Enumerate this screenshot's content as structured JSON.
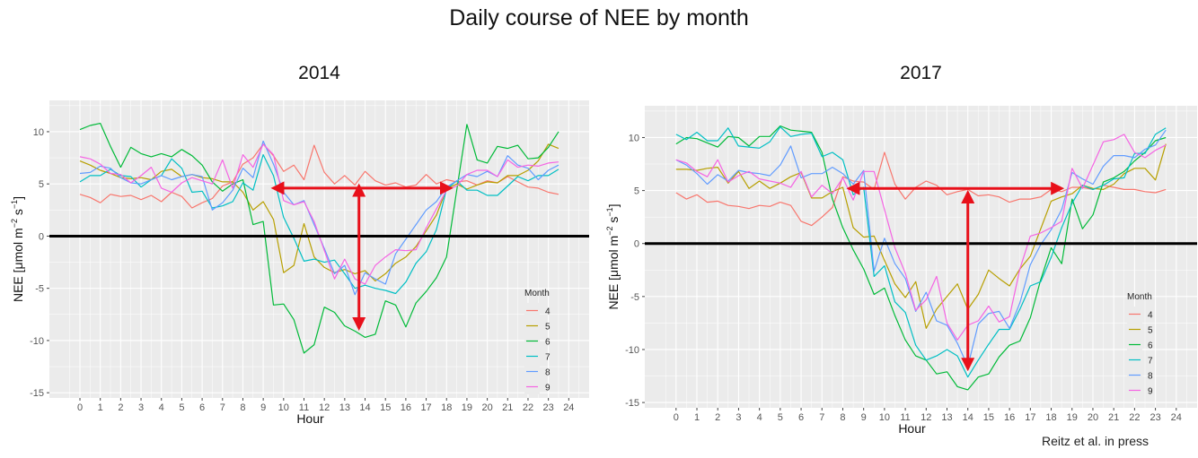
{
  "figure": {
    "title": "Daily course of NEE by month",
    "credit": "Reitz et al. in press"
  },
  "colors": {
    "panel_bg": "#ebebeb",
    "grid": "#ffffff",
    "zero_line": "#000000",
    "arrow": "#e8101a",
    "months": [
      "#f8766d",
      "#b79f00",
      "#00ba38",
      "#00bfc4",
      "#619cff",
      "#f564e3"
    ]
  },
  "chart_data": [
    {
      "type": "line",
      "title": "2014",
      "xlabel": "Hour",
      "ylabel_main": "NEE [μmol m",
      "ylabel_sup1": "−2",
      "ylabel_mid": " s",
      "ylabel_sup2": "−1",
      "ylabel_end": "]",
      "xlim": [
        -1.5,
        25
      ],
      "ylim": [
        -15.5,
        13
      ],
      "x_ticks": [
        0,
        1,
        2,
        3,
        4,
        5,
        6,
        7,
        8,
        9,
        10,
        11,
        12,
        13,
        14,
        15,
        16,
        17,
        18,
        19,
        20,
        21,
        22,
        23,
        24
      ],
      "y_ticks": [
        -15,
        -10,
        -5,
        0,
        5,
        10
      ],
      "legend": {
        "title": "Month",
        "labels": [
          "4",
          "5",
          "6",
          "7",
          "8",
          "9"
        ]
      },
      "annotations": {
        "h_arrow": {
          "x1": 9.5,
          "x2": 18.2,
          "y": 4.6
        },
        "v_arrow": {
          "x": 13.7,
          "y1": 4.8,
          "y2": -8.8
        }
      },
      "x": [
        0,
        0.5,
        1,
        1.5,
        2,
        2.5,
        3,
        3.5,
        4,
        4.5,
        5,
        5.5,
        6,
        6.5,
        7,
        7.5,
        8,
        8.5,
        9,
        9.5,
        10,
        10.5,
        11,
        11.5,
        12,
        12.5,
        13,
        13.5,
        14,
        14.5,
        15,
        15.5,
        16,
        16.5,
        17,
        17.5,
        18,
        18.5,
        19,
        19.5,
        20,
        20.5,
        21,
        21.5,
        22,
        22.5,
        23,
        23.5
      ],
      "series": [
        {
          "name": "4",
          "values": [
            4,
            3.7,
            3.2,
            4,
            3.8,
            3.9,
            3.5,
            3.9,
            3.3,
            4.2,
            3.8,
            2.7,
            3.2,
            3.6,
            4.8,
            5.2,
            6.9,
            7.5,
            8.8,
            7.7,
            6.2,
            6.8,
            5.4,
            8.7,
            6.1,
            5,
            5.8,
            4.9,
            6.2,
            5.3,
            4.9,
            5.1,
            4.7,
            4.9,
            5.9,
            5,
            5.4,
            5.2,
            5.3,
            4.9,
            5.3,
            5.1,
            5.7,
            5.2,
            4.7,
            4.6,
            4.2,
            4
          ]
        },
        {
          "name": "5",
          "values": [
            7.2,
            6.8,
            6.3,
            6,
            5.6,
            5.5,
            5.6,
            5.4,
            6.2,
            6.4,
            5.7,
            5.9,
            5.6,
            5.5,
            5.2,
            5.2,
            4.2,
            2.5,
            3.3,
            1.6,
            -3.5,
            -2.8,
            1.2,
            -2,
            -3,
            -3.5,
            -3.2,
            -3.6,
            -3.3,
            -4.3,
            -3.6,
            -2.6,
            -2,
            -1,
            0.5,
            2,
            4.5,
            5,
            4.5,
            4.9,
            5.2,
            5.1,
            5.8,
            5.8,
            6.3,
            7.2,
            8.8,
            8.4
          ]
        },
        {
          "name": "6",
          "values": [
            10.2,
            10.6,
            10.8,
            8.6,
            6.6,
            8.5,
            7.9,
            7.6,
            7.9,
            7.6,
            8.3,
            7.7,
            6.8,
            5.2,
            4.3,
            5,
            5.4,
            1.1,
            1.4,
            -6.6,
            -6.5,
            -8,
            -11.2,
            -10.4,
            -6.8,
            -7.3,
            -8.6,
            -9.1,
            -9.7,
            -9.4,
            -6.2,
            -6.6,
            -8.7,
            -6.4,
            -5.3,
            -4,
            -2,
            4.4,
            10.7,
            7.3,
            7,
            8.6,
            8.4,
            8.7,
            7.4,
            7.5,
            8.5,
            10
          ]
        },
        {
          "name": "7",
          "values": [
            5.2,
            5.8,
            5.8,
            6.4,
            5.8,
            5.7,
            4.7,
            5.4,
            5.8,
            7.4,
            6.5,
            4.2,
            4.3,
            2.7,
            2.9,
            3.3,
            5.1,
            4.4,
            7.8,
            5.8,
            1.8,
            -0.2,
            -2.4,
            -2.2,
            -2.5,
            -2.3,
            -3.6,
            -5,
            -4.7,
            -5,
            -5.2,
            -5.5,
            -4.4,
            -2.6,
            -1.5,
            0.6,
            4.5,
            5.3,
            4.4,
            4.4,
            3.9,
            3.9,
            4.8,
            5.7,
            5.3,
            5.8,
            5.8,
            6.4
          ]
        },
        {
          "name": "8",
          "values": [
            6,
            6.1,
            6.7,
            6.5,
            5.6,
            5.1,
            5,
            5.4,
            5.8,
            5.4,
            5.7,
            5.9,
            5.7,
            2.5,
            3.2,
            4.4,
            6.5,
            5.6,
            9.1,
            6.9,
            4.2,
            3,
            3.4,
            1.1,
            -1.2,
            -3.6,
            -2.8,
            -5.6,
            -3.5,
            -4.1,
            -4.6,
            -1.7,
            -0.3,
            1.1,
            2.5,
            3.3,
            4.7,
            5.3,
            5.9,
            5.7,
            6.2,
            5.7,
            7.7,
            6.8,
            6.5,
            5.4,
            6.3,
            6.8
          ]
        },
        {
          "name": "9",
          "values": [
            7.6,
            7.4,
            6.9,
            6,
            5.9,
            5.1,
            5.8,
            6.6,
            4.6,
            4.2,
            5.1,
            5.6,
            5.3,
            5,
            7.3,
            4.6,
            7.8,
            6.6,
            8.8,
            7.8,
            3.4,
            3,
            3.3,
            1.4,
            -1.4,
            -4.1,
            -2.2,
            -4.1,
            -4.6,
            -2.8,
            -2,
            -1.3,
            -1.4,
            -1.3,
            0.8,
            2.6,
            4.4,
            4.8,
            5.9,
            6.3,
            6.3,
            5.7,
            7.3,
            6.6,
            6.8,
            6.7,
            7,
            7.1
          ]
        }
      ]
    },
    {
      "type": "line",
      "title": "2017",
      "xlabel": "Hour",
      "ylabel_main": "NEE [μmol m",
      "ylabel_sup1": "−2",
      "ylabel_mid": " s",
      "ylabel_sup2": "−1",
      "ylabel_end": "]",
      "xlim": [
        -1.5,
        25
      ],
      "ylim": [
        -15.5,
        13
      ],
      "x_ticks": [
        0,
        1,
        2,
        3,
        4,
        5,
        6,
        7,
        8,
        9,
        10,
        11,
        12,
        13,
        14,
        15,
        16,
        17,
        18,
        19,
        20,
        21,
        22,
        23,
        24
      ],
      "y_ticks": [
        -15,
        -10,
        -5,
        0,
        5,
        10
      ],
      "legend": {
        "title": "Month",
        "labels": [
          "4",
          "5",
          "6",
          "7",
          "8",
          "9"
        ]
      },
      "annotations": {
        "h_arrow": {
          "x1": 8.3,
          "x2": 18.5,
          "y": 5.2
        },
        "v_arrow": {
          "x": 14,
          "y1": 4.8,
          "y2": -11.8
        }
      },
      "x": [
        0,
        0.5,
        1,
        1.5,
        2,
        2.5,
        3,
        3.5,
        4,
        4.5,
        5,
        5.5,
        6,
        6.5,
        7,
        7.5,
        8,
        8.5,
        9,
        9.5,
        10,
        10.5,
        11,
        11.5,
        12,
        12.5,
        13,
        13.5,
        14,
        14.5,
        15,
        15.5,
        16,
        16.5,
        17,
        17.5,
        18,
        18.5,
        19,
        19.5,
        20,
        20.5,
        21,
        21.5,
        22,
        22.5,
        23,
        23.5
      ],
      "series": [
        {
          "name": "4",
          "values": [
            4.8,
            4.2,
            4.6,
            3.9,
            4,
            3.6,
            3.5,
            3.3,
            3.6,
            3.5,
            3.9,
            3.6,
            2.1,
            1.7,
            2.5,
            3.4,
            6.3,
            5.9,
            5.8,
            5.1,
            8.6,
            5.6,
            4.2,
            5.3,
            5.9,
            5.5,
            4.6,
            4.9,
            5.1,
            4.5,
            4.6,
            4.4,
            3.9,
            4.2,
            4.2,
            4.4,
            5.1,
            4.9,
            5.3,
            5.3,
            5.1,
            5.5,
            5.3,
            5.1,
            5.1,
            4.9,
            4.8,
            5.1
          ]
        },
        {
          "name": "5",
          "values": [
            7,
            7,
            6.9,
            7.1,
            7.2,
            5.7,
            6.8,
            5.2,
            5.9,
            5.2,
            5.7,
            6.3,
            6.7,
            4.3,
            4.3,
            4.9,
            5.3,
            1.5,
            0.6,
            0.7,
            -1.6,
            -3.8,
            -5.1,
            -3.6,
            -8,
            -6.2,
            -5,
            -3.8,
            -6.2,
            -4.8,
            -2.5,
            -3.3,
            -4,
            -2.4,
            -1.2,
            1.4,
            4,
            4.4,
            4.7,
            5.5,
            5.2,
            5.1,
            5.6,
            6.6,
            7.1,
            7.1,
            6,
            9.4
          ]
        },
        {
          "name": "6",
          "values": [
            9.4,
            10,
            9.9,
            9.5,
            9.1,
            10.1,
            10,
            9.2,
            10.1,
            10.1,
            11.1,
            10.7,
            10.6,
            10.5,
            8.6,
            4.2,
            1.5,
            -0.6,
            -2.4,
            -4.8,
            -4.2,
            -6.8,
            -9.1,
            -10.6,
            -11,
            -12.3,
            -12.1,
            -13.5,
            -13.8,
            -12.6,
            -12.3,
            -10.7,
            -9.6,
            -9.2,
            -7,
            -3.4,
            -0.4,
            -1.9,
            4.2,
            1.4,
            2.7,
            5.8,
            6.2,
            6.8,
            7.8,
            8.6,
            9.7,
            10
          ]
        },
        {
          "name": "7",
          "values": [
            10.3,
            9.8,
            10.5,
            9.7,
            9.7,
            10.9,
            9.2,
            9.1,
            9,
            9.6,
            11,
            10.1,
            10.3,
            10.4,
            8.2,
            8.6,
            7.9,
            4.6,
            5.3,
            -3.1,
            -2.1,
            -5.5,
            -6.5,
            -9.6,
            -11,
            -10.6,
            -10,
            -10.6,
            -12.6,
            -11,
            -9.5,
            -8.1,
            -8.1,
            -6.2,
            -4,
            -3.6,
            -1.3,
            1.5,
            3.8,
            5.5,
            5.1,
            5.5,
            6.1,
            6.2,
            8.5,
            8.5,
            10.3,
            10.9
          ]
        },
        {
          "name": "8",
          "values": [
            7.9,
            7.4,
            6.6,
            5.6,
            6.5,
            5.9,
            6.9,
            6.7,
            6.6,
            6.4,
            7.4,
            9.2,
            6.2,
            6.6,
            6.6,
            7.2,
            6.6,
            5.6,
            6.9,
            -2.6,
            0.5,
            -1.9,
            -3.3,
            -6.4,
            -4.6,
            -7.3,
            -7.7,
            -9.4,
            -11.6,
            -7.6,
            -6.6,
            -6.4,
            -8,
            -5.6,
            -2,
            -0.1,
            1.3,
            3.2,
            6.7,
            6.1,
            5.6,
            7.3,
            8.3,
            8.3,
            8.1,
            8.9,
            9.3,
            10.7
          ]
        },
        {
          "name": "9",
          "values": [
            7.9,
            7.6,
            6.8,
            6.3,
            7.9,
            5.8,
            6.4,
            6.8,
            6.1,
            5.9,
            5.7,
            5.3,
            6.8,
            4.4,
            5.5,
            4.7,
            6.2,
            4.1,
            6.8,
            6.8,
            3.2,
            -0.4,
            -2.8,
            -6.3,
            -5.3,
            -3.1,
            -7.5,
            -9.1,
            -7.7,
            -7.3,
            -5.9,
            -7.4,
            -6.9,
            -2.4,
            0.7,
            1,
            1.5,
            2.1,
            7.1,
            5.2,
            7.4,
            9.6,
            9.8,
            10.3,
            8.6,
            8.1,
            8.8,
            9.3
          ]
        }
      ]
    }
  ]
}
